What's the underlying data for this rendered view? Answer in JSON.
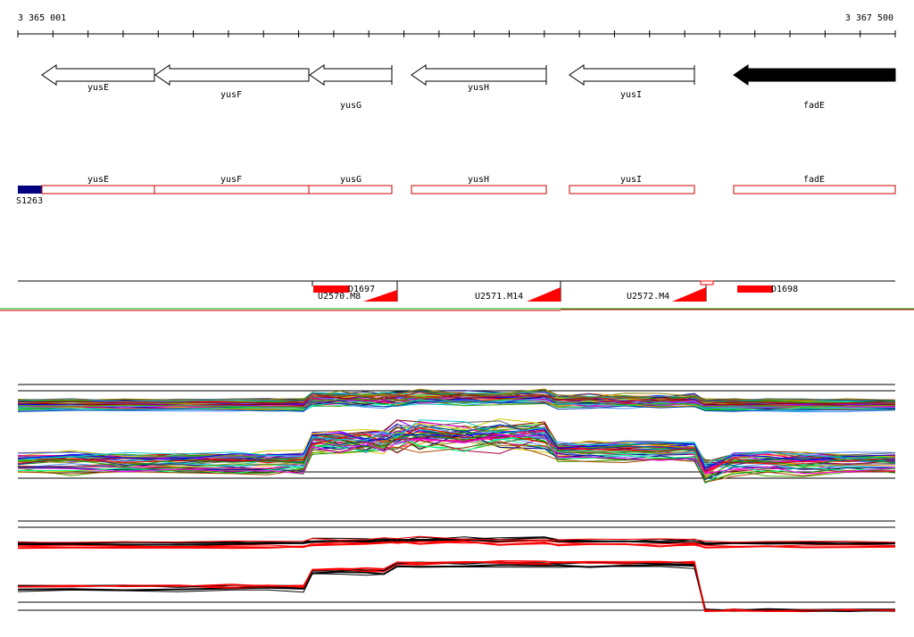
{
  "ruler": {
    "start_label": "3 365 001",
    "end_label": "3 367 500"
  },
  "genes": [
    {
      "name": "yusE",
      "strand": "-",
      "fill": "white"
    },
    {
      "name": "yusF",
      "strand": "-",
      "fill": "white"
    },
    {
      "name": "yusG",
      "strand": "-",
      "fill": "white"
    },
    {
      "name": "yusH",
      "strand": "-",
      "fill": "white"
    },
    {
      "name": "yusI",
      "strand": "-",
      "fill": "white"
    },
    {
      "name": "fadE",
      "strand": "-",
      "fill": "black"
    }
  ],
  "annotation_track": {
    "genes": [
      "yusE",
      "yusF",
      "yusG",
      "yusH",
      "yusI",
      "fadE"
    ],
    "marker_label": "S1263",
    "marker_color": "#000080",
    "box_color": "#cc0000"
  },
  "regions_track": {
    "labels": [
      "D1697",
      "U2570.M8",
      "U2571.M14",
      "U2572.M4",
      "D1698"
    ],
    "color": "#ff0000"
  },
  "colors": {
    "accent": "#ff0000",
    "marker": "#000080",
    "line": "#000000",
    "divider_green": "#00aa00"
  }
}
